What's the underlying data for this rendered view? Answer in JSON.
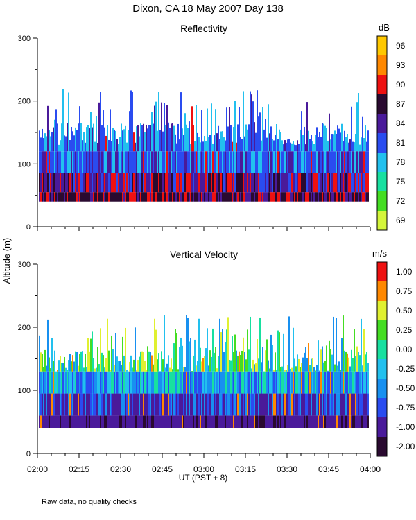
{
  "figure": {
    "title": "Dixon, CA 18 May 2007  Day 138",
    "ylabel": "Altitude (m)",
    "xlabel": "UT   (PST + 8)",
    "footnote": "Raw data, no quality checks"
  },
  "chart_data": [
    {
      "type": "heatmap",
      "title": "Reflectivity",
      "ylim": [
        0,
        300
      ],
      "yticks": [
        "0",
        "100",
        "200",
        "300"
      ],
      "x_range": [
        "02:00",
        "04:00"
      ],
      "data_altitude_range_m": [
        40,
        220
      ],
      "colorbar": {
        "unit": "dB",
        "labels": [
          "69",
          "72",
          "75",
          "78",
          "81",
          "84",
          "87",
          "90",
          "93",
          "96"
        ],
        "colors": [
          "#d4f53a",
          "#44dd22",
          "#18e0a0",
          "#22c0ee",
          "#2a4cf0",
          "#4a1a9a",
          "#2a0a30",
          "#ee1111",
          "#ff8800",
          "#ffc800"
        ]
      }
    },
    {
      "type": "heatmap",
      "title": "Vertical Velocity",
      "ylim": [
        0,
        300
      ],
      "yticks": [
        "0",
        "100",
        "200",
        "300"
      ],
      "xticks": [
        "02:00",
        "02:15",
        "02:30",
        "02:45",
        "03:00",
        "03:15",
        "03:30",
        "03:45",
        "04:00"
      ],
      "x_range": [
        "02:00",
        "04:00"
      ],
      "data_altitude_range_m": [
        40,
        220
      ],
      "colorbar": {
        "unit": "m/s",
        "labels": [
          "-2.00",
          "-1.00",
          "-0.75",
          "-0.50",
          "-0.25",
          "0.00",
          "0.25",
          "0.50",
          "0.75",
          "1.00"
        ],
        "colors": [
          "#2a0a30",
          "#4a1a9a",
          "#2a4cf0",
          "#1890f0",
          "#22c0ee",
          "#18e0a0",
          "#44dd22",
          "#e0f030",
          "#ff8800",
          "#ee1111"
        ]
      }
    }
  ]
}
